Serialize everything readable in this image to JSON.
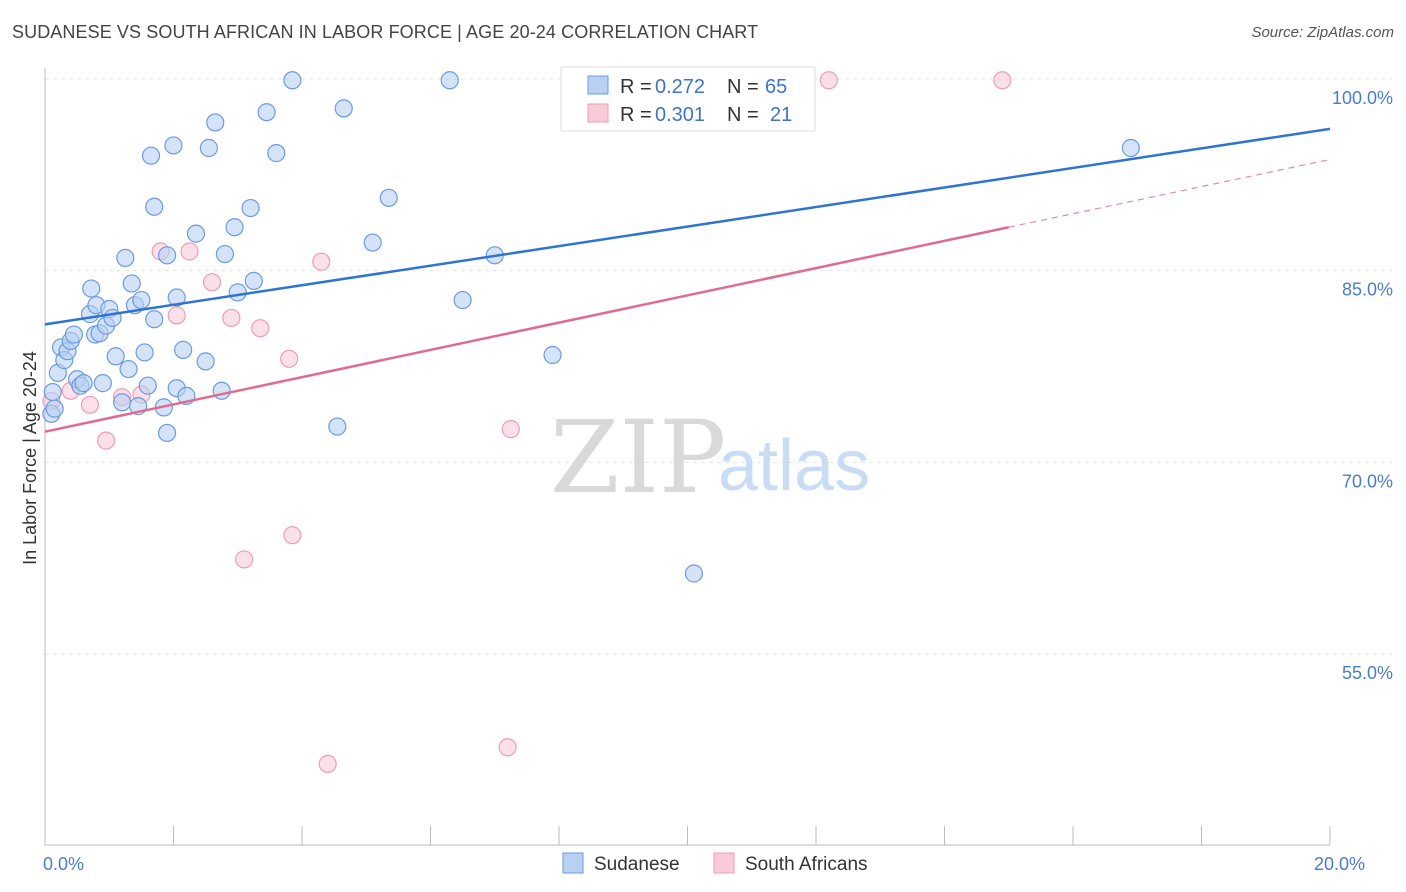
{
  "title": "SUDANESE VS SOUTH AFRICAN IN LABOR FORCE | AGE 20-24 CORRELATION CHART",
  "source": "Source: ZipAtlas.com",
  "watermark": {
    "zip": "ZIP",
    "atlas": "atlas"
  },
  "colors": {
    "blue_fill": "#b8d1f3",
    "blue_stroke": "#6b9be0",
    "blue_line": "#2e74d0",
    "pink_fill": "#f9cbd8",
    "pink_stroke": "#ec9db5",
    "pink_line": "#e06a92",
    "grid": "#e4e4e4",
    "tick_text": "#4a7cc9"
  },
  "legend": {
    "rows": [
      {
        "r_label": "R = ",
        "r_value": "0.272",
        "n_label": "N = ",
        "n_value": "65"
      },
      {
        "r_label": "R = ",
        "r_value": "0.301",
        "n_label": "N = ",
        "n_value": "21"
      }
    ]
  },
  "bottom_legend": [
    "Sudanese",
    "South Africans"
  ],
  "chart_data": {
    "type": "scatter",
    "title": "SUDANESE VS SOUTH AFRICAN IN LABOR FORCE | AGE 20-24 CORRELATION CHART",
    "xlabel": "",
    "ylabel": "In Labor Force | Age 20-24",
    "xlim": [
      0,
      20
    ],
    "ylim": [
      40,
      102
    ],
    "x_tick_labels": [
      {
        "value": 0,
        "label": "0.0%"
      },
      {
        "value": 20,
        "label": "20.0%"
      }
    ],
    "y_tick_labels": [
      {
        "value": 100,
        "label": "100.0%"
      },
      {
        "value": 85,
        "label": "85.0%"
      },
      {
        "value": 70,
        "label": "70.0%"
      },
      {
        "value": 55,
        "label": "55.0%"
      }
    ],
    "series": [
      {
        "name": "Sudanese",
        "color": "#b8d1f3",
        "R": 0.272,
        "N": 65,
        "trend": {
          "x": [
            0,
            20
          ],
          "y": [
            80.8,
            96.1
          ]
        },
        "points": [
          [
            0.1,
            73.8
          ],
          [
            0.12,
            75.5
          ],
          [
            0.2,
            77.0
          ],
          [
            0.25,
            79.0
          ],
          [
            0.3,
            78.0
          ],
          [
            0.35,
            78.7
          ],
          [
            0.4,
            79.5
          ],
          [
            0.45,
            80.0
          ],
          [
            0.5,
            76.5
          ],
          [
            0.55,
            76.0
          ],
          [
            0.6,
            76.2
          ],
          [
            0.7,
            81.6
          ],
          [
            0.72,
            83.6
          ],
          [
            0.78,
            80.0
          ],
          [
            0.8,
            82.3
          ],
          [
            0.85,
            80.1
          ],
          [
            0.95,
            80.7
          ],
          [
            1.0,
            82.0
          ],
          [
            1.05,
            81.3
          ],
          [
            1.1,
            78.3
          ],
          [
            1.2,
            74.7
          ],
          [
            1.25,
            86.0
          ],
          [
            1.3,
            77.3
          ],
          [
            1.35,
            84.0
          ],
          [
            1.4,
            82.3
          ],
          [
            1.45,
            74.4
          ],
          [
            1.5,
            82.7
          ],
          [
            1.55,
            78.6
          ],
          [
            1.65,
            94.0
          ],
          [
            1.7,
            90.0
          ],
          [
            1.7,
            81.2
          ],
          [
            1.85,
            74.3
          ],
          [
            1.9,
            72.3
          ],
          [
            1.9,
            86.2
          ],
          [
            2.0,
            94.8
          ],
          [
            2.05,
            82.9
          ],
          [
            2.05,
            75.8
          ],
          [
            2.15,
            78.8
          ],
          [
            2.2,
            75.2
          ],
          [
            2.35,
            87.9
          ],
          [
            2.5,
            77.9
          ],
          [
            2.55,
            94.6
          ],
          [
            2.65,
            96.6
          ],
          [
            2.75,
            75.6
          ],
          [
            2.8,
            86.3
          ],
          [
            2.95,
            88.4
          ],
          [
            3.0,
            83.3
          ],
          [
            3.2,
            89.9
          ],
          [
            3.25,
            84.2
          ],
          [
            3.45,
            97.4
          ],
          [
            3.6,
            94.2
          ],
          [
            3.85,
            99.9
          ],
          [
            4.55,
            72.8
          ],
          [
            4.65,
            97.7
          ],
          [
            5.1,
            87.2
          ],
          [
            5.35,
            90.7
          ],
          [
            6.3,
            99.9
          ],
          [
            7.0,
            86.2
          ],
          [
            6.5,
            82.7
          ],
          [
            7.9,
            78.4
          ],
          [
            10.1,
            61.3
          ],
          [
            16.9,
            94.6
          ],
          [
            0.15,
            74.2
          ],
          [
            0.9,
            76.2
          ],
          [
            1.6,
            76.0
          ]
        ]
      },
      {
        "name": "South Africans",
        "color": "#f9cbd8",
        "R": 0.301,
        "N": 21,
        "trend": {
          "x": [
            0,
            15
          ],
          "y": [
            72.4,
            88.4
          ]
        },
        "trend_dashed": {
          "x": [
            15,
            20
          ],
          "y": [
            88.4,
            93.7
          ]
        },
        "points": [
          [
            0.1,
            74.8
          ],
          [
            0.4,
            75.6
          ],
          [
            0.7,
            74.5
          ],
          [
            0.95,
            71.7
          ],
          [
            1.2,
            75.1
          ],
          [
            1.5,
            75.3
          ],
          [
            1.8,
            86.5
          ],
          [
            2.05,
            81.5
          ],
          [
            2.25,
            86.5
          ],
          [
            2.6,
            84.1
          ],
          [
            2.9,
            81.3
          ],
          [
            3.1,
            62.4
          ],
          [
            3.35,
            80.5
          ],
          [
            3.8,
            78.1
          ],
          [
            3.85,
            64.3
          ],
          [
            4.3,
            85.7
          ],
          [
            4.4,
            46.4
          ],
          [
            7.2,
            47.7
          ],
          [
            7.25,
            72.6
          ],
          [
            12.2,
            99.9
          ],
          [
            14.9,
            99.9
          ]
        ]
      }
    ]
  }
}
